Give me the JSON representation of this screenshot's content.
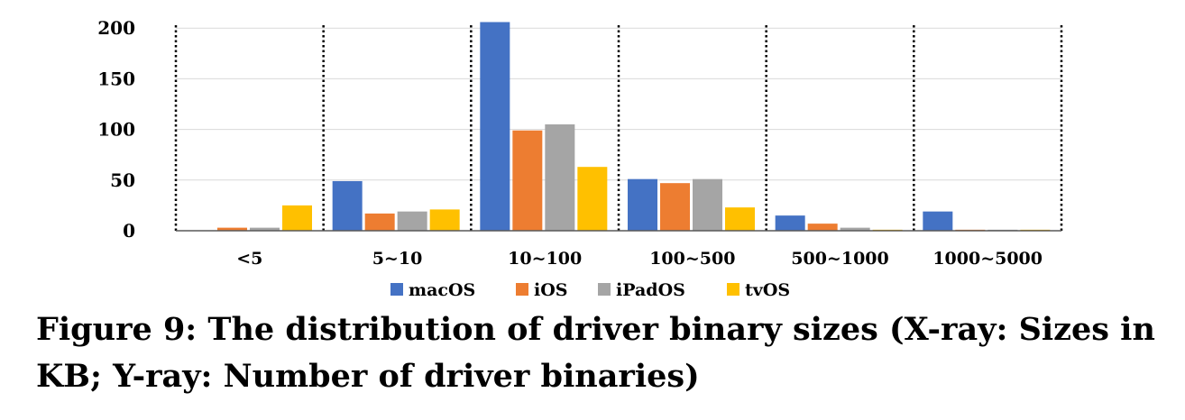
{
  "chart_data": {
    "type": "bar",
    "categories": [
      "<5",
      "5~10",
      "10~100",
      "100~500",
      "500~1000",
      "1000~5000"
    ],
    "series": [
      {
        "name": "macOS",
        "color": "#4472C4",
        "values": [
          0,
          49,
          206,
          51,
          15,
          19
        ]
      },
      {
        "name": "iOS",
        "color": "#ED7D31",
        "values": [
          3,
          17,
          99,
          47,
          7,
          1
        ]
      },
      {
        "name": "iPadOS",
        "color": "#A5A5A5",
        "values": [
          3,
          19,
          105,
          51,
          3,
          1
        ]
      },
      {
        "name": "tvOS",
        "color": "#FFC000",
        "values": [
          25,
          21,
          63,
          23,
          1,
          1
        ]
      }
    ],
    "yticks": [
      0,
      50,
      100,
      150,
      200
    ],
    "ylim": [
      0,
      210
    ],
    "grid": true,
    "legend": "bottom"
  },
  "caption": "Figure 9: The distribution of driver binary sizes (X-ray: Sizes in KB; Y-ray: Number of driver binaries)"
}
